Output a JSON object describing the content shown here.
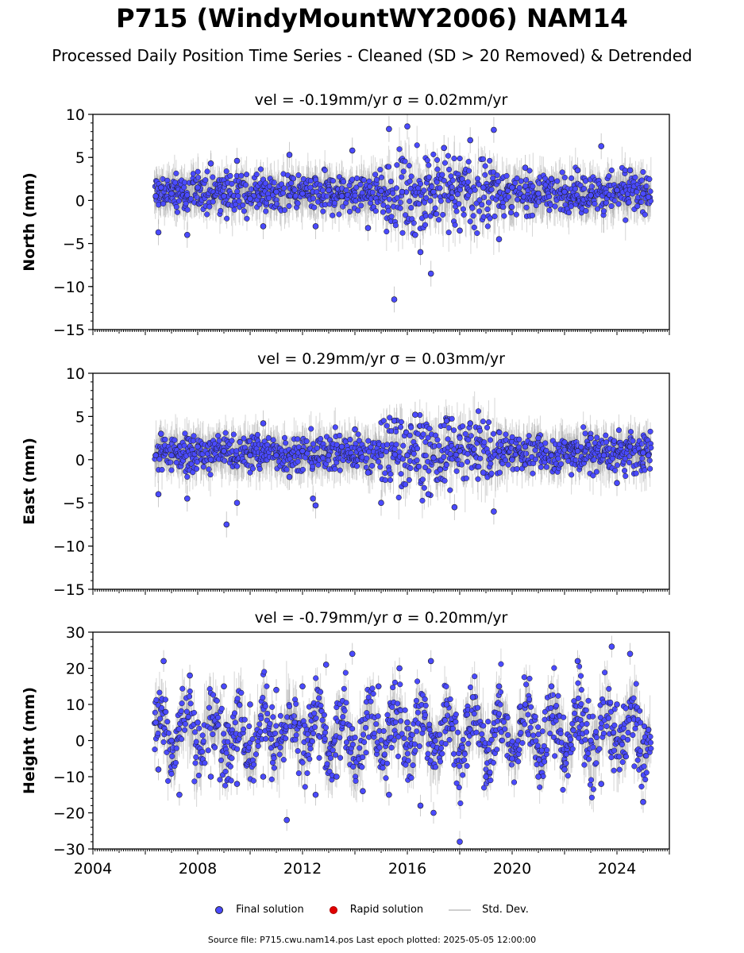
{
  "title": "P715 (WindyMountWY2006) NAM14",
  "subtitle": "Processed Daily Position Time Series - Cleaned (SD > 20 Removed) & Detrended",
  "legend": {
    "final": "Final solution",
    "rapid": "Rapid solution",
    "std": "Std. Dev."
  },
  "footer": "Source file: P715.cwu.nam14.pos  Last epoch plotted: 2025-05-05 12:00:00",
  "colors": {
    "final": "#4a4aff",
    "rapid": "#e00000",
    "std": "#cfcfcf"
  },
  "chart_data": [
    {
      "type": "scatter",
      "title": "vel = -0.19mm/yr   σ = 0.02mm/yr",
      "ylabel": "North (mm)",
      "xlim": [
        2004,
        2026
      ],
      "ylim": [
        -15,
        10
      ],
      "yticks": [
        10,
        5,
        0,
        -5,
        -10,
        -15
      ],
      "ytick_labels": [
        "10",
        "5",
        "0",
        "−5",
        "−10",
        "−15"
      ],
      "series": [
        {
          "x": [
            2006.4,
            2006.5,
            2006.6,
            2007.0,
            2007.6,
            2008.0,
            2008.5,
            2009.0,
            2009.5,
            2010.0,
            2010.5,
            2011.0,
            2011.5,
            2012.0,
            2012.5,
            2013.0,
            2013.5,
            2013.9,
            2014.5,
            2015.0,
            2015.3,
            2015.5,
            2015.8,
            2016.0,
            2016.3,
            2016.5,
            2016.9,
            2017.0,
            2017.4,
            2017.7,
            2018.0,
            2018.4,
            2018.9,
            2019.3,
            2019.5,
            2020.0,
            2020.5,
            2021.0,
            2021.5,
            2022.0,
            2022.5,
            2023.0,
            2023.4,
            2024.0,
            2024.5,
            2025.0,
            2025.2
          ],
          "values": [
            0.5,
            -3.7,
            1.5,
            0.8,
            -4.0,
            1.5,
            4.3,
            0.5,
            4.6,
            0.2,
            -3.0,
            1.0,
            5.3,
            0.8,
            -3.0,
            1.2,
            0.5,
            5.8,
            -3.2,
            1.1,
            8.3,
            -11.5,
            1.0,
            8.6,
            -4.0,
            -6.0,
            -8.5,
            1.0,
            6.1,
            0.3,
            -3.5,
            7.0,
            1.5,
            8.2,
            -4.5,
            1.5,
            3.8,
            0.8,
            2.5,
            1.0,
            3.5,
            0.6,
            6.3,
            1.2,
            3.5,
            0.8,
            0.4
          ]
        }
      ]
    },
    {
      "type": "scatter",
      "title": "vel = 0.29mm/yr   σ = 0.03mm/yr",
      "ylabel": "East (mm)",
      "xlim": [
        2004,
        2026
      ],
      "ylim": [
        -15,
        10
      ],
      "yticks": [
        10,
        5,
        0,
        -5,
        -10,
        -15
      ],
      "ytick_labels": [
        "10",
        "5",
        "0",
        "−5",
        "−10",
        "−15"
      ],
      "series": [
        {
          "x": [
            2006.4,
            2006.5,
            2006.6,
            2007.0,
            2007.6,
            2008.0,
            2008.5,
            2009.0,
            2009.1,
            2009.5,
            2010.0,
            2010.5,
            2011.0,
            2011.5,
            2012.0,
            2012.4,
            2012.5,
            2013.0,
            2013.5,
            2014.0,
            2014.5,
            2015.0,
            2015.5,
            2016.0,
            2016.3,
            2016.8,
            2017.0,
            2017.5,
            2017.8,
            2018.0,
            2018.4,
            2018.9,
            2019.3,
            2019.5,
            2020.0,
            2020.5,
            2021.0,
            2021.5,
            2022.0,
            2022.5,
            2023.0,
            2023.5,
            2024.0,
            2024.5,
            2025.0,
            2025.2
          ],
          "values": [
            0.5,
            -4.0,
            3.0,
            0.5,
            -4.5,
            1.5,
            0.0,
            1.0,
            -7.5,
            -5.0,
            0.5,
            4.2,
            0.5,
            -2.0,
            1.0,
            -4.5,
            -5.3,
            0.5,
            1.5,
            3.5,
            -1.5,
            -5.0,
            4.5,
            0.5,
            5.2,
            -4.0,
            0.2,
            4.5,
            -5.5,
            1.0,
            4.2,
            -1.5,
            -6.0,
            1.0,
            0.0,
            1.5,
            2.5,
            0.5,
            2.0,
            1.0,
            2.5,
            0.5,
            -2.7,
            1.5,
            0.8,
            0.5
          ]
        }
      ]
    },
    {
      "type": "scatter",
      "title": "vel = -0.79mm/yr   σ = 0.20mm/yr",
      "ylabel": "Height (mm)",
      "xlim": [
        2004,
        2026
      ],
      "ylim": [
        -30,
        30
      ],
      "yticks": [
        30,
        20,
        10,
        0,
        -10,
        -20,
        -30
      ],
      "ytick_labels": [
        "30",
        "20",
        "10",
        "0",
        "−10",
        "−20",
        "−30"
      ],
      "xticks": [
        2004,
        2008,
        2012,
        2016,
        2020,
        2024
      ],
      "xtick_labels": [
        "2004",
        "2008",
        "2012",
        "2016",
        "2020",
        "2024"
      ],
      "series": [
        {
          "x": [
            2006.4,
            2006.5,
            2006.7,
            2007.0,
            2007.3,
            2007.7,
            2008.0,
            2008.5,
            2009.0,
            2009.5,
            2010.0,
            2010.5,
            2011.0,
            2011.4,
            2011.7,
            2012.0,
            2012.5,
            2012.9,
            2013.3,
            2013.9,
            2014.3,
            2014.9,
            2015.3,
            2015.7,
            2016.0,
            2016.5,
            2016.9,
            2017.0,
            2017.5,
            2018.0,
            2018.5,
            2019.0,
            2019.5,
            2020.0,
            2020.5,
            2021.0,
            2021.5,
            2022.0,
            2022.5,
            2023.0,
            2023.4,
            2023.8,
            2024.0,
            2024.5,
            2025.0,
            2025.2
          ],
          "values": [
            5.0,
            -8.0,
            22.0,
            0.0,
            -15.0,
            18.0,
            5.0,
            -10.0,
            15.0,
            -12.0,
            10.0,
            -10.0,
            14.0,
            -22.0,
            5.0,
            15.0,
            -15.0,
            21.0,
            -10.0,
            24.0,
            -14.0,
            15.0,
            -15.0,
            20.0,
            5.0,
            -18.0,
            22.0,
            -20.0,
            10.0,
            -28.0,
            12.0,
            -10.0,
            15.0,
            -5.0,
            10.0,
            -10.0,
            15.0,
            -8.0,
            22.0,
            0.0,
            -12.0,
            26.0,
            10.0,
            24.0,
            -17.0,
            3.0
          ]
        }
      ]
    }
  ]
}
